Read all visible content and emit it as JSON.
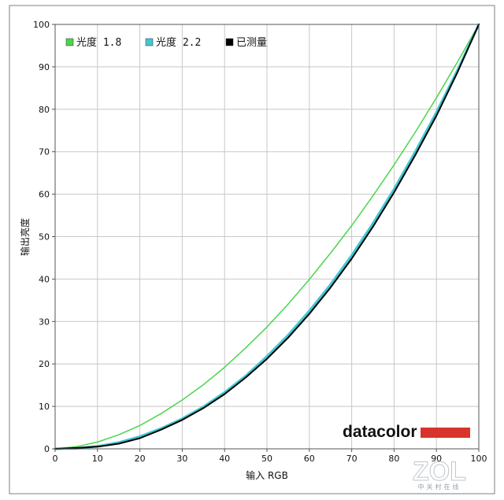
{
  "chart_data": {
    "type": "line",
    "title": "",
    "xlabel": "输入 RGB",
    "ylabel": "输出亮度",
    "xlim": [
      0,
      100
    ],
    "ylim": [
      0,
      100
    ],
    "x_ticks": [
      "0",
      "10",
      "20",
      "30",
      "40",
      "50",
      "60",
      "70",
      "80",
      "90",
      "100"
    ],
    "y_ticks": [
      "0",
      "10",
      "20",
      "30",
      "40",
      "50",
      "60",
      "70",
      "80",
      "90",
      "100"
    ],
    "grid": true,
    "legend_position": "top-left",
    "x": [
      0,
      5,
      10,
      15,
      20,
      25,
      30,
      35,
      40,
      45,
      50,
      55,
      60,
      65,
      70,
      75,
      80,
      85,
      90,
      95,
      100
    ],
    "series": [
      {
        "name": "光度 1.8",
        "color": "#4cd44c",
        "values": [
          0,
          0.5,
          1.6,
          3.3,
          5.5,
          8.3,
          11.5,
          15.1,
          19.2,
          23.8,
          28.7,
          34.1,
          39.9,
          46.1,
          52.6,
          59.6,
          66.9,
          74.6,
          82.7,
          91.2,
          100
        ]
      },
      {
        "name": "光度 2.2",
        "color": "#40c8d4",
        "values": [
          0,
          0.1,
          0.6,
          1.5,
          2.9,
          4.8,
          7.1,
          9.9,
          13.3,
          17.2,
          21.8,
          26.8,
          32.5,
          38.7,
          45.6,
          53.1,
          61.2,
          70.0,
          79.3,
          89.3,
          100
        ]
      },
      {
        "name": "已测量",
        "color": "#000000",
        "values": [
          0,
          0.2,
          0.5,
          1.2,
          2.5,
          4.5,
          6.8,
          9.6,
          12.9,
          16.8,
          21.2,
          26.2,
          31.8,
          38.0,
          44.8,
          52.3,
          60.4,
          69.2,
          78.5,
          88.8,
          100
        ]
      }
    ]
  },
  "brand": {
    "name": "datacolor",
    "bar_color": "#d9342b"
  },
  "watermark": {
    "text": "ZOL",
    "sub": "中关村在线"
  }
}
